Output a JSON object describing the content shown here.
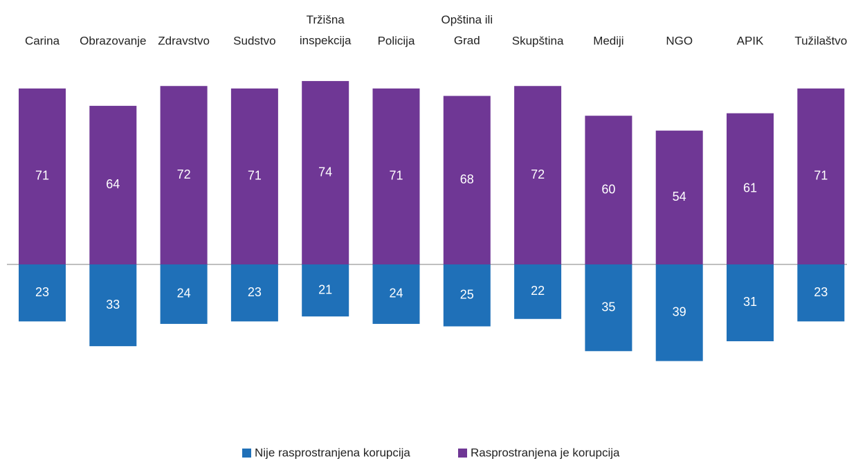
{
  "chart_data": {
    "type": "diverging_bar",
    "categories": [
      "Carina",
      "Obrazovanje",
      "Zdravstvo",
      "Sudstvo",
      "Tržišna\ninspekcija",
      "Policija",
      "Opština ili\nGrad",
      "Skupština",
      "Mediji",
      "NGO",
      "APIK",
      "Tužilaštvo"
    ],
    "series": [
      {
        "name": "Nije rasprostranjena korupcija",
        "color": "#1f70b8",
        "direction": "down",
        "values": [
          23,
          33,
          24,
          23,
          21,
          24,
          25,
          22,
          35,
          39,
          31,
          23
        ]
      },
      {
        "name": "Rasprostranjena je korupcija",
        "color": "#6f3795",
        "direction": "up",
        "values": [
          71,
          64,
          72,
          71,
          74,
          71,
          68,
          72,
          60,
          54,
          61,
          71
        ]
      }
    ],
    "legend": "bottom"
  }
}
